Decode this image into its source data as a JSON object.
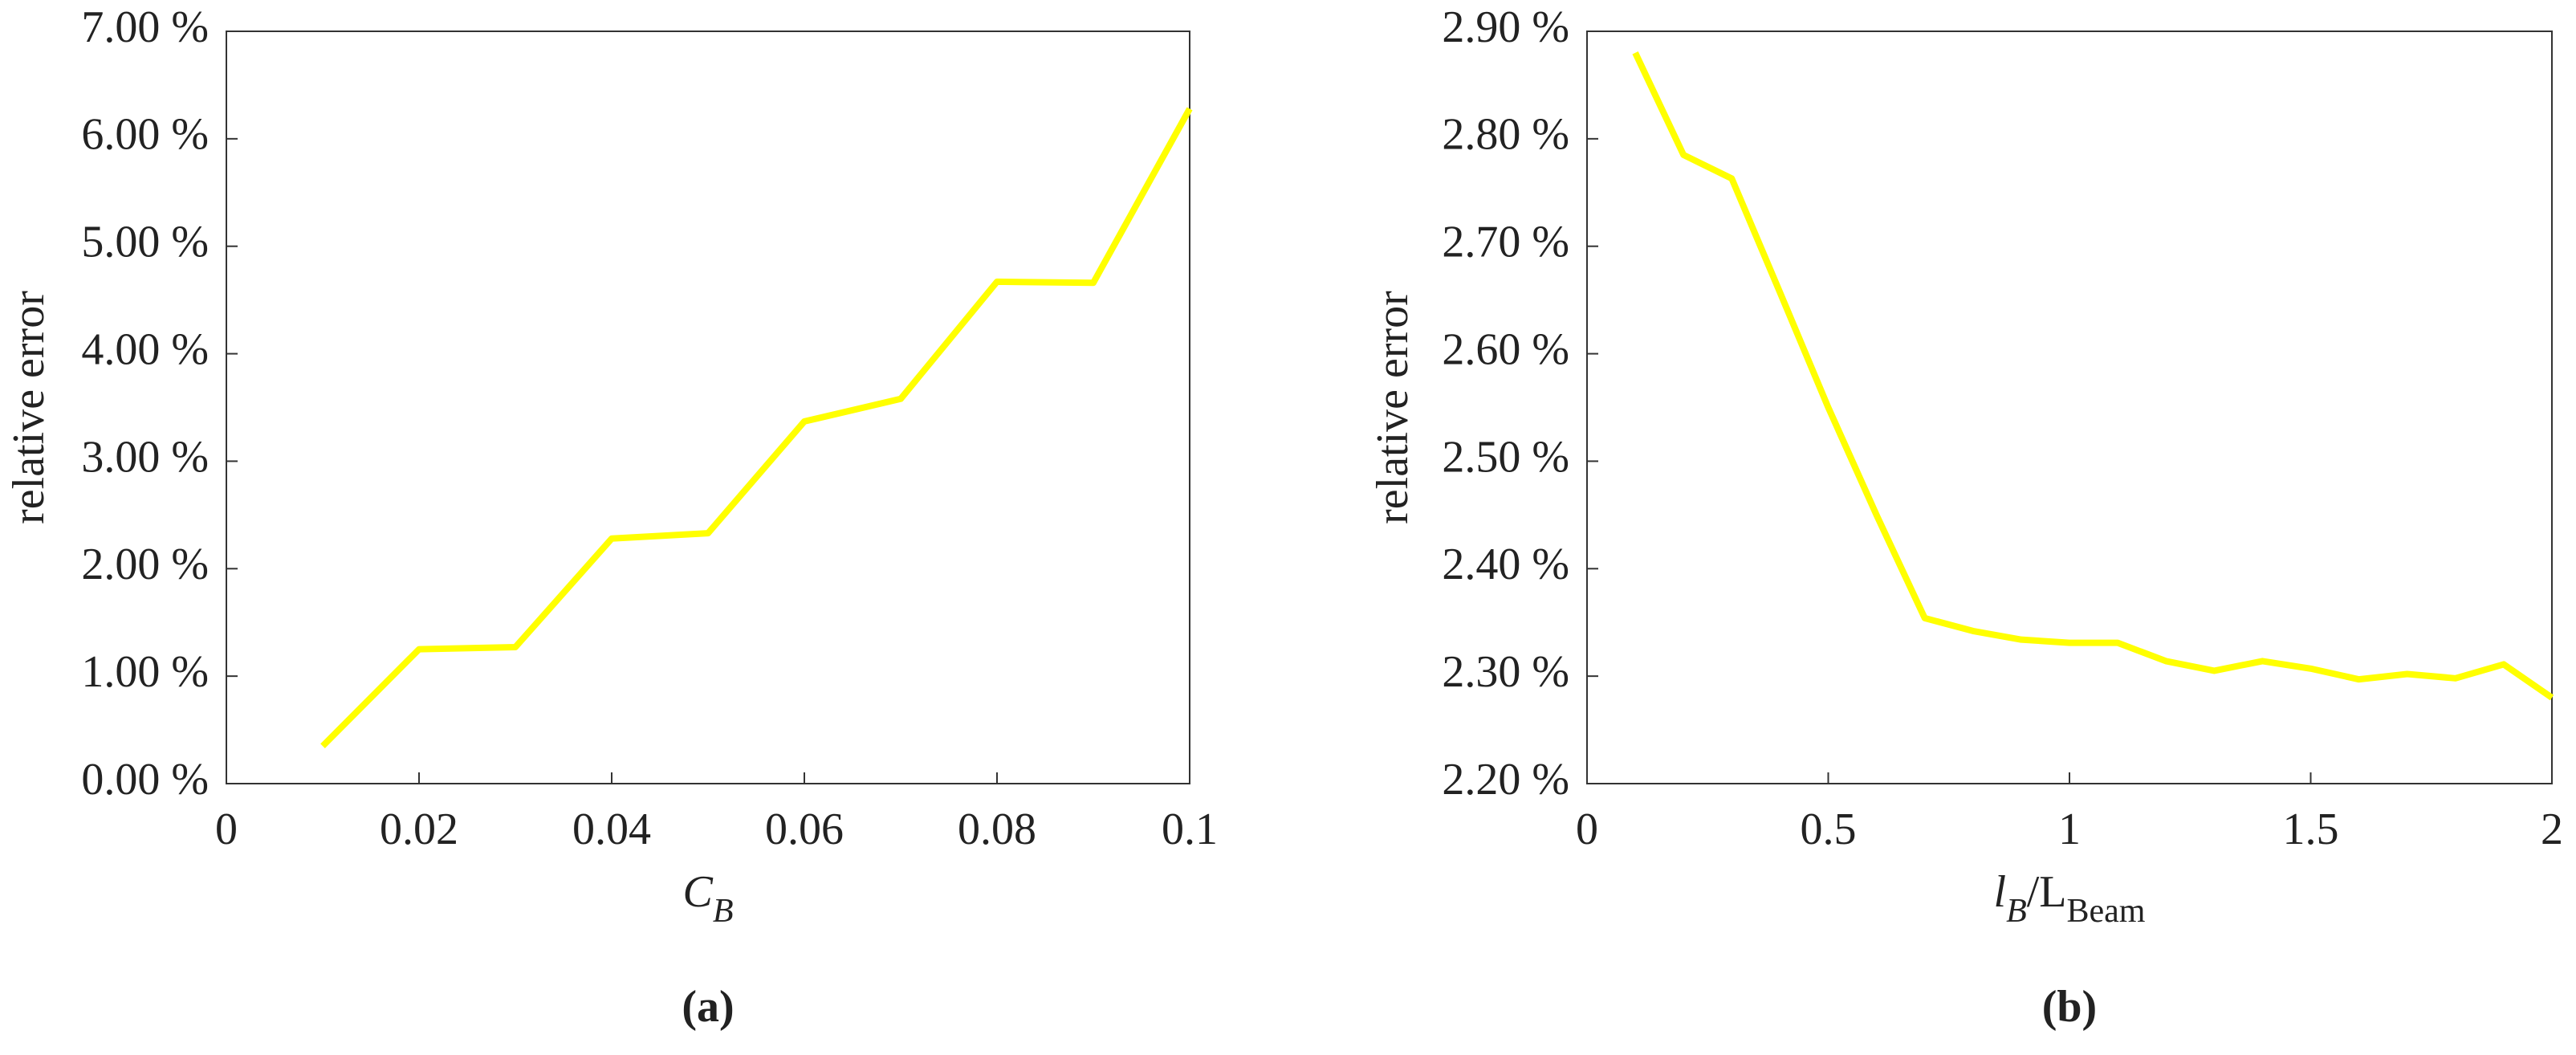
{
  "chart_data": [
    {
      "type": "line",
      "panel_label": "(a)",
      "ylabel": "relative error",
      "xlabel_parts": [
        {
          "text": "C",
          "sub": false
        },
        {
          "text": "B",
          "sub": true
        }
      ],
      "x": [
        0.01,
        0.02,
        0.03,
        0.04,
        0.05,
        0.06,
        0.07,
        0.08,
        0.09,
        0.1
      ],
      "series": [
        {
          "color": "#ffff00",
          "values": [
            0.35,
            1.25,
            1.27,
            2.28,
            2.33,
            3.37,
            3.58,
            4.67,
            4.66,
            6.28
          ]
        }
      ],
      "xlim": [
        0,
        0.1
      ],
      "xticks": [
        0,
        0.02,
        0.04,
        0.06,
        0.08,
        0.1
      ],
      "ylim": [
        0,
        7
      ],
      "yticks": [
        {
          "value": 0,
          "label": "0.00 %"
        },
        {
          "value": 1,
          "label": "1.00 %"
        },
        {
          "value": 2,
          "label": "2.00 %"
        },
        {
          "value": 3,
          "label": "3.00 %"
        },
        {
          "value": 4,
          "label": "4.00 %"
        },
        {
          "value": 5,
          "label": "5.00 %"
        },
        {
          "value": 6,
          "label": "6.00 %"
        },
        {
          "value": 7,
          "label": "7.00 %"
        }
      ]
    },
    {
      "type": "line",
      "panel_label": "(b)",
      "ylabel": "relative error",
      "xlabel_parts": [
        {
          "text": "l",
          "sub": false
        },
        {
          "text": "B",
          "sub": true
        },
        {
          "text": "/L",
          "sub": false
        },
        {
          "text": "Beam",
          "sub": true
        }
      ],
      "x": [
        0.1,
        0.2,
        0.3,
        0.4,
        0.5,
        0.6,
        0.7,
        0.8,
        0.9,
        1.0,
        1.1,
        1.2,
        1.3,
        1.4,
        1.5,
        1.6,
        1.7,
        1.8,
        1.9,
        2.0
      ],
      "series": [
        {
          "color": "#ffff00",
          "values": [
            2.88,
            2.785,
            2.763,
            2.657,
            2.55,
            2.45,
            2.354,
            2.342,
            2.334,
            2.331,
            2.331,
            2.314,
            2.305,
            2.314,
            2.307,
            2.297,
            2.302,
            2.298,
            2.311,
            2.28
          ]
        }
      ],
      "xlim": [
        0,
        2
      ],
      "xticks": [
        0,
        0.5,
        1,
        1.5,
        2
      ],
      "ylim": [
        2.2,
        2.9
      ],
      "yticks": [
        {
          "value": 2.2,
          "label": "2.20 %"
        },
        {
          "value": 2.3,
          "label": "2.30 %"
        },
        {
          "value": 2.4,
          "label": "2.40 %"
        },
        {
          "value": 2.5,
          "label": "2.50 %"
        },
        {
          "value": 2.6,
          "label": "2.60 %"
        },
        {
          "value": 2.7,
          "label": "2.70 %"
        },
        {
          "value": 2.8,
          "label": "2.80 %"
        },
        {
          "value": 2.9,
          "label": "2.90 %"
        }
      ]
    }
  ]
}
